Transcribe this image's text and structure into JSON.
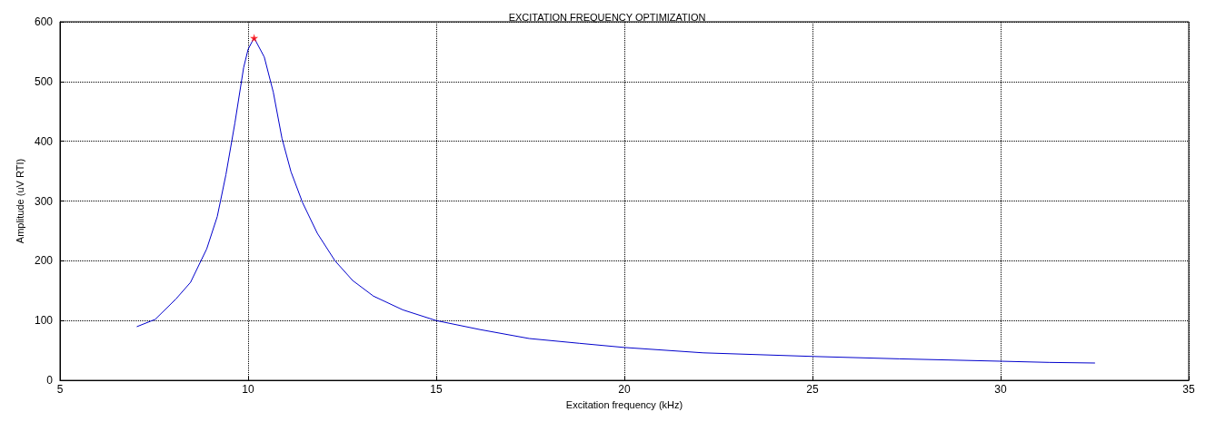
{
  "chart_data": {
    "type": "line",
    "title": "EXCITATION FREQUENCY OPTIMIZATION",
    "xlabel": "Excitation frequency (kHz)",
    "ylabel": "Amplitude (uV RTI)",
    "xlim": [
      5,
      35
    ],
    "xticks": [
      5,
      10,
      15,
      20,
      25,
      30,
      35
    ],
    "ylim": [
      0,
      600
    ],
    "yticks": [
      0,
      100,
      200,
      300,
      400,
      500,
      600
    ],
    "grid": true,
    "series": [
      {
        "color": "#0000cc",
        "marker": "none",
        "x": [
          7.05,
          7.53,
          8.08,
          8.47,
          8.9,
          9.18,
          9.41,
          9.65,
          9.88,
          10.0,
          10.16,
          10.43,
          10.67,
          10.9,
          11.14,
          11.45,
          11.84,
          12.31,
          12.78,
          13.33,
          14.11,
          15,
          16.16,
          17.47,
          18.8,
          20,
          22.1,
          25,
          27.3,
          30,
          31.3,
          32.5
        ],
        "values": [
          90,
          102,
          136,
          164,
          220,
          274,
          344,
          431,
          523,
          554,
          573,
          541,
          482,
          405,
          349,
          297,
          246,
          200,
          167,
          141,
          118,
          100,
          85,
          70,
          62,
          55,
          46,
          40,
          36,
          32,
          30,
          29
        ]
      },
      {
        "type": "scatter",
        "color": "#ff0000",
        "marker": "star",
        "x": [
          10.16
        ],
        "values": [
          573
        ]
      }
    ]
  }
}
